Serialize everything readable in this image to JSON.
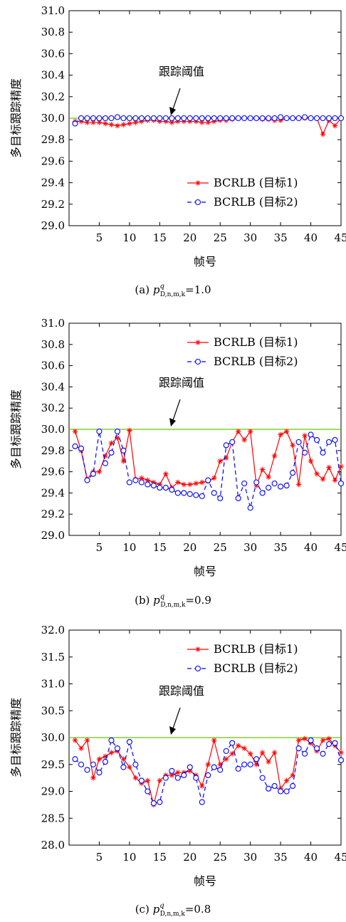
{
  "figure": {
    "panels": [
      {
        "caption": "(a) ",
        "caption_symbol": "p",
        "caption_sup": "q",
        "caption_sub": "D,n,m,k",
        "caption_value": "=1.0",
        "threshold_label": "跟踪阈值",
        "legend_position": "bottom-right"
      },
      {
        "caption": "(b) ",
        "caption_symbol": "p",
        "caption_sup": "q",
        "caption_sub": "D,n,m,k",
        "caption_value": "=0.9",
        "threshold_label": "跟踪阈值",
        "legend_position": "top-right"
      },
      {
        "caption": "(c) ",
        "caption_symbol": "p",
        "caption_sup": "q",
        "caption_sub": "D,n,m,k",
        "caption_value": "=0.8",
        "threshold_label": "跟踪阈值",
        "legend_position": "top-right"
      }
    ]
  },
  "chart_data": [
    {
      "type": "line",
      "xlabel": "帧号",
      "ylabel": "多目标跟踪精度",
      "xlim": [
        0,
        45
      ],
      "ylim": [
        29.0,
        31.0
      ],
      "xticks": [
        5,
        10,
        15,
        20,
        25,
        30,
        35,
        40,
        45
      ],
      "yticks": [
        29.0,
        29.2,
        29.4,
        29.6,
        29.8,
        30.0,
        30.2,
        30.4,
        30.6,
        30.8,
        31.0
      ],
      "tick_decimals": 1,
      "threshold": 30.0,
      "grid": false,
      "legend_position": "bottom-right",
      "colors": {
        "series1": "#ff0000",
        "series2": "#0000ff",
        "threshold": "#66cc00"
      },
      "x": [
        1,
        2,
        3,
        4,
        5,
        6,
        7,
        8,
        9,
        10,
        11,
        12,
        13,
        14,
        15,
        16,
        17,
        18,
        19,
        20,
        21,
        22,
        23,
        24,
        25,
        26,
        27,
        28,
        29,
        30,
        31,
        32,
        33,
        34,
        35,
        36,
        37,
        38,
        39,
        40,
        41,
        42,
        43,
        44,
        45
      ],
      "series": [
        {
          "name": "BCRLB (目标1)",
          "values": [
            29.97,
            29.97,
            29.96,
            29.96,
            29.96,
            29.95,
            29.94,
            29.93,
            29.94,
            29.95,
            29.96,
            29.97,
            29.98,
            29.98,
            29.97,
            29.97,
            29.96,
            29.97,
            29.97,
            29.97,
            29.97,
            29.96,
            29.96,
            29.97,
            29.98,
            29.98,
            29.99,
            30.0,
            30.0,
            30.0,
            30.0,
            29.99,
            29.99,
            29.98,
            29.98,
            30.0,
            30.0,
            30.0,
            30.0,
            30.0,
            30.0,
            29.85,
            29.98,
            29.93,
            30.0
          ]
        },
        {
          "name": "BCRLB (目标2)",
          "values": [
            29.95,
            30.0,
            30.0,
            30.0,
            30.0,
            30.0,
            30.0,
            30.01,
            30.0,
            30.0,
            30.0,
            30.0,
            30.0,
            30.0,
            30.0,
            30.0,
            30.0,
            30.0,
            30.0,
            30.0,
            30.0,
            30.0,
            30.0,
            30.0,
            30.0,
            30.0,
            30.0,
            30.0,
            30.0,
            30.0,
            30.0,
            30.0,
            30.0,
            30.0,
            30.01,
            30.0,
            30.0,
            30.0,
            30.01,
            30.0,
            30.0,
            30.0,
            30.0,
            30.0,
            30.0
          ]
        }
      ]
    },
    {
      "type": "line",
      "xlabel": "帧号",
      "ylabel": "多目标跟踪精度",
      "xlim": [
        0,
        45
      ],
      "ylim": [
        29.0,
        31.0
      ],
      "xticks": [
        5,
        10,
        15,
        20,
        25,
        30,
        35,
        40,
        45
      ],
      "yticks": [
        29.0,
        29.2,
        29.4,
        29.6,
        29.8,
        30.0,
        30.2,
        30.4,
        30.6,
        30.8,
        31.0
      ],
      "tick_decimals": 1,
      "threshold": 30.0,
      "grid": false,
      "legend_position": "top-right",
      "colors": {
        "series1": "#ff0000",
        "series2": "#0000ff",
        "threshold": "#66cc00"
      },
      "x": [
        1,
        2,
        3,
        4,
        5,
        6,
        7,
        8,
        9,
        10,
        11,
        12,
        13,
        14,
        15,
        16,
        17,
        18,
        19,
        20,
        21,
        22,
        23,
        24,
        25,
        26,
        27,
        28,
        29,
        30,
        31,
        32,
        33,
        34,
        35,
        36,
        37,
        38,
        39,
        40,
        41,
        42,
        43,
        44,
        45
      ],
      "series": [
        {
          "name": "BCRLB (目标1)",
          "values": [
            29.98,
            29.8,
            29.53,
            29.6,
            29.6,
            29.75,
            29.87,
            29.92,
            29.7,
            29.99,
            29.53,
            29.54,
            29.52,
            29.5,
            29.48,
            29.58,
            29.45,
            29.5,
            29.48,
            29.48,
            29.49,
            29.5,
            29.51,
            29.54,
            29.7,
            29.73,
            29.88,
            29.98,
            29.9,
            29.98,
            29.47,
            29.62,
            29.55,
            29.75,
            29.95,
            29.98,
            29.85,
            29.48,
            29.94,
            29.7,
            29.58,
            29.53,
            29.64,
            29.52,
            29.65
          ]
        },
        {
          "name": "BCRLB (目标2)",
          "values": [
            29.84,
            29.82,
            29.52,
            29.58,
            29.98,
            29.68,
            29.78,
            29.98,
            29.8,
            29.5,
            29.52,
            29.5,
            29.48,
            29.47,
            29.45,
            29.45,
            29.43,
            29.4,
            29.4,
            29.39,
            29.38,
            29.37,
            29.52,
            29.4,
            29.35,
            29.85,
            29.88,
            29.35,
            29.49,
            29.26,
            29.5,
            29.4,
            29.45,
            29.49,
            29.46,
            29.47,
            29.59,
            29.88,
            29.78,
            29.95,
            29.9,
            29.78,
            29.88,
            29.9,
            29.49
          ]
        }
      ]
    },
    {
      "type": "line",
      "xlabel": "帧号",
      "ylabel": "多目标跟踪精度",
      "xlim": [
        0,
        45
      ],
      "ylim": [
        28.0,
        32.0
      ],
      "xticks": [
        5,
        10,
        15,
        20,
        25,
        30,
        35,
        40,
        45
      ],
      "yticks": [
        28.0,
        28.5,
        29.0,
        29.5,
        30.0,
        30.5,
        31.0,
        31.5,
        32.0
      ],
      "tick_decimals": 1,
      "threshold": 30.0,
      "grid": false,
      "legend_position": "top-right",
      "colors": {
        "series1": "#ff0000",
        "series2": "#0000ff",
        "threshold": "#66cc00"
      },
      "x": [
        1,
        2,
        3,
        4,
        5,
        6,
        7,
        8,
        9,
        10,
        11,
        12,
        13,
        14,
        15,
        16,
        17,
        18,
        19,
        20,
        21,
        22,
        23,
        24,
        25,
        26,
        27,
        28,
        29,
        30,
        31,
        32,
        33,
        34,
        35,
        36,
        37,
        38,
        39,
        40,
        41,
        42,
        43,
        44,
        45
      ],
      "series": [
        {
          "name": "BCRLB (目标1)",
          "values": [
            29.95,
            29.8,
            29.95,
            29.25,
            29.6,
            29.65,
            29.72,
            29.75,
            29.6,
            29.45,
            29.25,
            29.15,
            29.2,
            28.75,
            29.2,
            29.3,
            29.3,
            29.35,
            29.35,
            29.38,
            29.3,
            29.1,
            29.5,
            29.95,
            29.5,
            29.6,
            29.7,
            29.85,
            29.8,
            29.7,
            29.5,
            29.72,
            29.55,
            29.72,
            29.05,
            29.2,
            29.3,
            29.95,
            29.98,
            29.9,
            29.75,
            29.95,
            29.98,
            29.85,
            29.72
          ]
        },
        {
          "name": "BCRLB (目标2)",
          "values": [
            29.6,
            29.5,
            29.4,
            29.5,
            29.35,
            29.55,
            29.95,
            29.8,
            29.45,
            29.92,
            29.5,
            29.2,
            29.0,
            28.78,
            28.8,
            29.25,
            29.38,
            29.25,
            29.3,
            29.45,
            29.25,
            28.8,
            29.3,
            29.45,
            29.4,
            29.75,
            29.9,
            29.42,
            29.5,
            29.5,
            29.6,
            29.25,
            29.05,
            29.1,
            29.0,
            29.0,
            29.1,
            29.8,
            29.7,
            29.95,
            29.8,
            29.7,
            29.88,
            29.9,
            29.58
          ]
        }
      ]
    }
  ]
}
